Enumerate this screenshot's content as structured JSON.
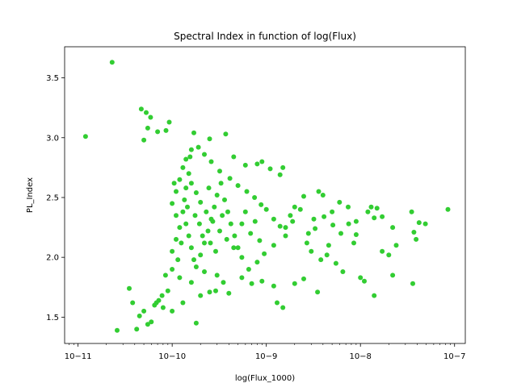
{
  "chart_data": {
    "type": "scatter",
    "title": "Spectral Index in function of log(Flux)",
    "xlabel": "log(Flux_1000)",
    "ylabel": "PL_Index",
    "xscale": "log",
    "xlim": [
      7.2e-12,
      1.3e-07
    ],
    "ylim": [
      1.28,
      3.76
    ],
    "grid": false,
    "legend": "none",
    "marker_color": "#32cd32",
    "x_ticks": [
      1e-11,
      1e-10,
      1e-09,
      1e-08,
      1e-07
    ],
    "x_tick_labels": [
      "10−11",
      "10−10",
      "10−9",
      "10−8",
      "10−7"
    ],
    "y_ticks": [
      1.5,
      2.0,
      2.5,
      3.0,
      3.5
    ],
    "y_tick_labels": [
      "1.5",
      "2.0",
      "2.5",
      "3.0",
      "3.5"
    ],
    "series": [
      {
        "points": [
          [
            1.2e-11,
            3.01
          ],
          [
            2.3e-11,
            3.63
          ],
          [
            2.6e-11,
            1.39
          ],
          [
            4.7e-11,
            3.24
          ],
          [
            5.3e-11,
            3.21
          ],
          [
            5.9e-11,
            3.17
          ],
          [
            5.5e-11,
            3.08
          ],
          [
            7e-11,
            3.05
          ],
          [
            8.6e-11,
            3.06
          ],
          [
            9.3e-11,
            3.13
          ],
          [
            1.7e-10,
            3.04
          ],
          [
            3.7e-10,
            3.03
          ],
          [
            2.5e-10,
            2.99
          ],
          [
            5e-11,
            2.98
          ],
          [
            4.2e-11,
            1.4
          ],
          [
            5.5e-11,
            1.44
          ],
          [
            6e-11,
            1.46
          ],
          [
            4.5e-11,
            1.51
          ],
          [
            3.8e-11,
            1.62
          ],
          [
            3.5e-11,
            1.74
          ],
          [
            5e-11,
            1.55
          ],
          [
            6.5e-11,
            1.6
          ],
          [
            7.2e-11,
            1.64
          ],
          [
            8e-11,
            1.58
          ],
          [
            1e-10,
            1.55
          ],
          [
            1.3e-10,
            1.62
          ],
          [
            1.8e-10,
            1.45
          ],
          [
            2e-10,
            1.68
          ],
          [
            2.5e-10,
            1.71
          ],
          [
            2.9e-10,
            1.72
          ],
          [
            4e-10,
            1.7
          ],
          [
            1.3e-09,
            1.62
          ],
          [
            1.5e-09,
            1.58
          ],
          [
            3.5e-09,
            1.71
          ],
          [
            1.4e-08,
            1.68
          ],
          [
            3.6e-08,
            1.78
          ],
          [
            2.2e-08,
            1.85
          ],
          [
            1e-08,
            1.83
          ],
          [
            1.1e-08,
            1.8
          ],
          [
            8.5e-08,
            2.4
          ],
          [
            4.9e-08,
            2.28
          ],
          [
            4.2e-08,
            2.29
          ],
          [
            3.5e-08,
            2.38
          ],
          [
            3.9e-08,
            2.15
          ],
          [
            3.7e-08,
            2.21
          ],
          [
            2.4e-08,
            2.1
          ],
          [
            2.2e-08,
            2.25
          ],
          [
            1.7e-08,
            2.34
          ],
          [
            1.5e-08,
            2.41
          ],
          [
            1.4e-08,
            2.33
          ],
          [
            1.3e-08,
            2.42
          ],
          [
            1.2e-08,
            2.38
          ],
          [
            9e-09,
            2.3
          ],
          [
            7.5e-09,
            2.28
          ],
          [
            8.5e-09,
            2.12
          ],
          [
            6e-09,
            2.46
          ],
          [
            4e-09,
            2.52
          ],
          [
            5e-09,
            2.38
          ],
          [
            3.2e-09,
            2.32
          ],
          [
            1.7e-08,
            2.05
          ],
          [
            2e-08,
            2.02
          ],
          [
            9e-09,
            2.19
          ],
          [
            1.5e-09,
            2.75
          ],
          [
            1.4e-09,
            2.69
          ],
          [
            1.1e-09,
            2.74
          ],
          [
            9e-10,
            2.8
          ],
          [
            8e-10,
            2.78
          ],
          [
            6e-10,
            2.77
          ],
          [
            4.5e-10,
            2.84
          ],
          [
            3.6e-09,
            2.55
          ],
          [
            2.5e-09,
            2.51
          ],
          [
            2e-09,
            2.42
          ],
          [
            1.8e-09,
            2.35
          ],
          [
            1.6e-09,
            2.25
          ],
          [
            2.8e-09,
            2.2
          ],
          [
            3e-09,
            2.05
          ],
          [
            4.4e-09,
            2.02
          ],
          [
            5.5e-09,
            1.95
          ],
          [
            6.5e-09,
            1.88
          ],
          [
            2.5e-09,
            1.82
          ],
          [
            2e-09,
            1.78
          ],
          [
            1.2e-09,
            1.76
          ],
          [
            9e-10,
            1.8
          ],
          [
            7e-10,
            1.78
          ],
          [
            5.5e-10,
            1.83
          ],
          [
            3.5e-10,
            1.79
          ],
          [
            3e-10,
            1.85
          ],
          [
            2.2e-10,
            1.88
          ],
          [
            1.6e-10,
            1.79
          ],
          [
            1.2e-10,
            1.83
          ],
          [
            1e-10,
            1.9
          ],
          [
            8.5e-11,
            1.85
          ],
          [
            1e-10,
            2.05
          ],
          [
            1.1e-10,
            2.15
          ],
          [
            1.2e-10,
            2.25
          ],
          [
            1.1e-10,
            2.35
          ],
          [
            1e-10,
            2.45
          ],
          [
            1.1e-10,
            2.55
          ],
          [
            1.2e-10,
            2.65
          ],
          [
            1.3e-10,
            2.75
          ],
          [
            1.4e-10,
            2.82
          ],
          [
            1.6e-10,
            2.9
          ],
          [
            1.9e-10,
            2.92
          ],
          [
            2.2e-10,
            2.86
          ],
          [
            2.6e-10,
            2.8
          ],
          [
            3.2e-10,
            2.72
          ],
          [
            4.1e-10,
            2.66
          ],
          [
            5e-10,
            2.6
          ],
          [
            6.2e-10,
            2.55
          ],
          [
            7.5e-10,
            2.5
          ],
          [
            8.8e-10,
            2.44
          ],
          [
            1e-09,
            2.4
          ],
          [
            1.2e-09,
            2.32
          ],
          [
            1.4e-09,
            2.26
          ],
          [
            1.6e-09,
            2.18
          ],
          [
            1.2e-09,
            2.1
          ],
          [
            9.5e-10,
            2.03
          ],
          [
            8e-10,
            1.96
          ],
          [
            6.5e-10,
            1.9
          ],
          [
            5.5e-10,
            2.0
          ],
          [
            4.5e-10,
            2.08
          ],
          [
            3.8e-10,
            2.15
          ],
          [
            3.2e-10,
            2.22
          ],
          [
            2.7e-10,
            2.3
          ],
          [
            2.3e-10,
            2.38
          ],
          [
            2e-10,
            2.46
          ],
          [
            1.8e-10,
            2.54
          ],
          [
            1.6e-10,
            2.62
          ],
          [
            1.5e-10,
            2.7
          ],
          [
            1.4e-10,
            2.58
          ],
          [
            1.35e-10,
            2.48
          ],
          [
            1.3e-10,
            2.38
          ],
          [
            1.4e-10,
            2.28
          ],
          [
            1.5e-10,
            2.18
          ],
          [
            1.6e-10,
            2.08
          ],
          [
            1.7e-10,
            1.98
          ],
          [
            1.8e-10,
            1.92
          ],
          [
            2e-10,
            2.02
          ],
          [
            2.2e-10,
            2.12
          ],
          [
            2.4e-10,
            2.22
          ],
          [
            2.6e-10,
            2.32
          ],
          [
            2.8e-10,
            2.42
          ],
          [
            3e-10,
            2.52
          ],
          [
            3.3e-10,
            2.62
          ],
          [
            3.6e-10,
            2.48
          ],
          [
            3.9e-10,
            2.38
          ],
          [
            4.2e-10,
            2.28
          ],
          [
            4.6e-10,
            2.18
          ],
          [
            5e-10,
            2.08
          ],
          [
            5.5e-10,
            2.28
          ],
          [
            6e-10,
            2.38
          ],
          [
            6.8e-10,
            2.2
          ],
          [
            7.6e-10,
            2.3
          ],
          [
            8.5e-10,
            2.14
          ],
          [
            1.9e-09,
            2.3
          ],
          [
            2.3e-09,
            2.4
          ],
          [
            2.7e-09,
            2.12
          ],
          [
            3.3e-09,
            2.24
          ],
          [
            4.1e-09,
            2.34
          ],
          [
            5.1e-09,
            2.27
          ],
          [
            6.2e-09,
            2.2
          ],
          [
            7.4e-09,
            2.42
          ],
          [
            4.6e-09,
            2.1
          ],
          [
            3.8e-09,
            1.98
          ],
          [
            2.9e-10,
            2.05
          ],
          [
            2.1e-10,
            2.18
          ],
          [
            1.75e-10,
            2.35
          ],
          [
            2.45e-10,
            2.58
          ],
          [
            3.4e-10,
            2.35
          ],
          [
            2.55e-10,
            2.12
          ],
          [
            1.95e-10,
            2.28
          ],
          [
            1.45e-10,
            2.42
          ],
          [
            1.25e-10,
            2.12
          ],
          [
            1.15e-10,
            1.98
          ],
          [
            9e-11,
            1.72
          ],
          [
            7.8e-11,
            1.68
          ],
          [
            6.8e-11,
            1.62
          ],
          [
            1.05e-10,
            2.62
          ],
          [
            1.55e-10,
            2.84
          ]
        ]
      }
    ]
  }
}
